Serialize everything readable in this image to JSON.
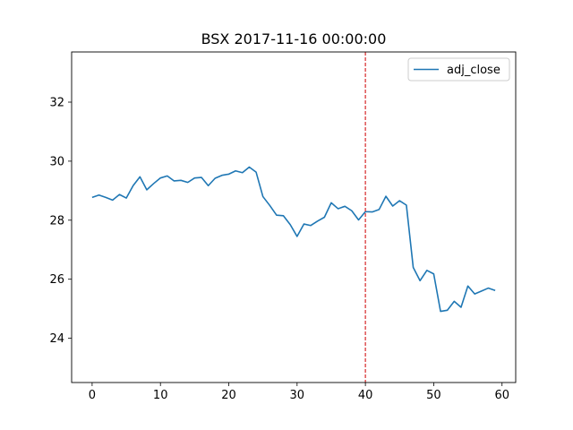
{
  "chart_data": {
    "type": "line",
    "title": "BSX 2017-11-16 00:00:00",
    "xlabel": "",
    "ylabel": "",
    "xlim": [
      -3,
      62
    ],
    "ylim": [
      22.5,
      33.7
    ],
    "xticks": [
      0,
      10,
      20,
      30,
      40,
      50,
      60
    ],
    "yticks": [
      24,
      26,
      28,
      30,
      32
    ],
    "grid": false,
    "legend": {
      "position": "top-right"
    },
    "series": [
      {
        "name": "adj_close",
        "color": "#1f77b4",
        "x": [
          0,
          1,
          2,
          3,
          4,
          5,
          6,
          7,
          8,
          9,
          10,
          11,
          12,
          13,
          14,
          15,
          16,
          17,
          18,
          19,
          20,
          21,
          22,
          23,
          24,
          25,
          26,
          27,
          28,
          29,
          30,
          31,
          32,
          33,
          34,
          35,
          36,
          37,
          38,
          39,
          40,
          41,
          42,
          43,
          44,
          45,
          46,
          47,
          48,
          49,
          50,
          51,
          52,
          53,
          54,
          55,
          56,
          57,
          58,
          59
        ],
        "values": [
          28.77,
          28.85,
          28.77,
          28.68,
          28.87,
          28.75,
          29.17,
          29.47,
          29.03,
          29.24,
          29.43,
          29.5,
          29.33,
          29.35,
          29.28,
          29.43,
          29.45,
          29.17,
          29.42,
          29.52,
          29.56,
          29.67,
          29.61,
          29.8,
          29.63,
          28.8,
          28.5,
          28.17,
          28.15,
          27.85,
          27.45,
          27.87,
          27.82,
          27.97,
          28.1,
          28.59,
          28.39,
          28.47,
          28.32,
          28.01,
          28.29,
          28.28,
          28.36,
          28.81,
          28.48,
          28.66,
          28.51,
          26.4,
          25.95,
          26.3,
          26.18,
          24.91,
          24.95,
          25.25,
          25.05,
          25.77,
          25.5,
          25.6,
          25.7,
          25.62
        ]
      }
    ],
    "annotations": [
      {
        "type": "vline",
        "x": 40,
        "color": "#d62728",
        "style": "dashed"
      }
    ]
  }
}
